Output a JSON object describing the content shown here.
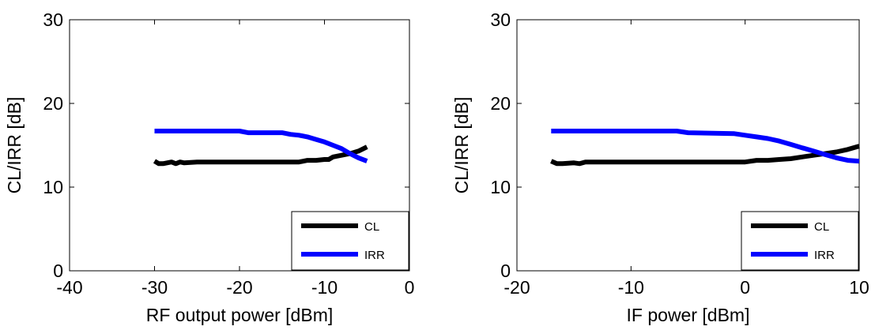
{
  "chart_data": [
    {
      "type": "line",
      "title": "",
      "xlabel": "RF output power [dBm]",
      "ylabel": "CL/IRR [dB]",
      "xlim": [
        -40,
        0
      ],
      "ylim": [
        0,
        30
      ],
      "xticks": [
        -40,
        -30,
        -20,
        -10,
        0
      ],
      "yticks": [
        0,
        10,
        20,
        30
      ],
      "xtick_labels": [
        "-40",
        "-30",
        "-20",
        "-10",
        "0"
      ],
      "ytick_labels": [
        "0",
        "10",
        "20",
        "30"
      ],
      "grid": false,
      "legend_position": "bottom-right",
      "series": [
        {
          "name": "CL",
          "color": "#000000",
          "x": [
            -30,
            -29.5,
            -29,
            -28,
            -27.5,
            -27,
            -26.5,
            -25,
            -20,
            -15,
            -13,
            -12,
            -11,
            -10,
            -9.5,
            -9,
            -8,
            -7,
            -6,
            -5
          ],
          "y": [
            13.1,
            12.8,
            12.8,
            13.0,
            12.8,
            13.0,
            12.9,
            13.0,
            13.0,
            13.0,
            13.0,
            13.2,
            13.2,
            13.3,
            13.3,
            13.6,
            13.8,
            14.0,
            14.3,
            14.8
          ]
        },
        {
          "name": "IRR",
          "color": "#0000ff",
          "x": [
            -30,
            -25,
            -20,
            -19,
            -15,
            -14,
            -13,
            -12,
            -11,
            -10,
            -9,
            -8,
            -7,
            -6,
            -5
          ],
          "y": [
            16.7,
            16.7,
            16.7,
            16.5,
            16.5,
            16.3,
            16.2,
            16.0,
            15.7,
            15.4,
            15.0,
            14.6,
            14.0,
            13.5,
            13.1
          ]
        }
      ]
    },
    {
      "type": "line",
      "title": "",
      "xlabel": "IF power [dBm]",
      "ylabel": "CL/IRR [dB]",
      "xlim": [
        -20,
        10
      ],
      "ylim": [
        0,
        30
      ],
      "xticks": [
        -20,
        -10,
        0,
        10
      ],
      "yticks": [
        0,
        10,
        20,
        30
      ],
      "xtick_labels": [
        "-20",
        "-10",
        "0",
        "10"
      ],
      "ytick_labels": [
        "0",
        "10",
        "20",
        "30"
      ],
      "grid": false,
      "legend_position": "bottom-right",
      "series": [
        {
          "name": "CL",
          "color": "#000000",
          "x": [
            -17,
            -16.5,
            -16,
            -15,
            -14.5,
            -14,
            -10,
            -5,
            -1,
            0,
            1,
            2,
            3,
            4,
            5,
            6,
            7,
            8,
            9,
            10
          ],
          "y": [
            13.1,
            12.8,
            12.8,
            12.9,
            12.8,
            13.0,
            13.0,
            13.0,
            13.0,
            13.0,
            13.2,
            13.2,
            13.3,
            13.4,
            13.6,
            13.8,
            14.0,
            14.2,
            14.5,
            14.9
          ]
        },
        {
          "name": "IRR",
          "color": "#0000ff",
          "x": [
            -17,
            -10,
            -6,
            -5,
            -1,
            0,
            1,
            2,
            3,
            4,
            5,
            6,
            7,
            8,
            9,
            10
          ],
          "y": [
            16.7,
            16.7,
            16.7,
            16.5,
            16.4,
            16.2,
            16.0,
            15.8,
            15.5,
            15.1,
            14.7,
            14.3,
            13.9,
            13.5,
            13.2,
            13.1
          ]
        }
      ]
    }
  ]
}
